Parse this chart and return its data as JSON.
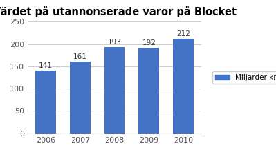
{
  "categories": [
    "2006",
    "2007",
    "2008",
    "2009",
    "2010"
  ],
  "values": [
    141,
    161,
    193,
    192,
    212
  ],
  "bar_color": "#4472c4",
  "title": "Värdet på utannonserade varor på Blocket",
  "title_fontsize": 10.5,
  "ylim": [
    0,
    250
  ],
  "yticks": [
    0,
    50,
    100,
    150,
    200,
    250
  ],
  "legend_label": "Miljarder kronor",
  "bar_label_fontsize": 7.5,
  "tick_fontsize": 8,
  "background_color": "#ffffff",
  "grid_color": "#d0d0d0"
}
